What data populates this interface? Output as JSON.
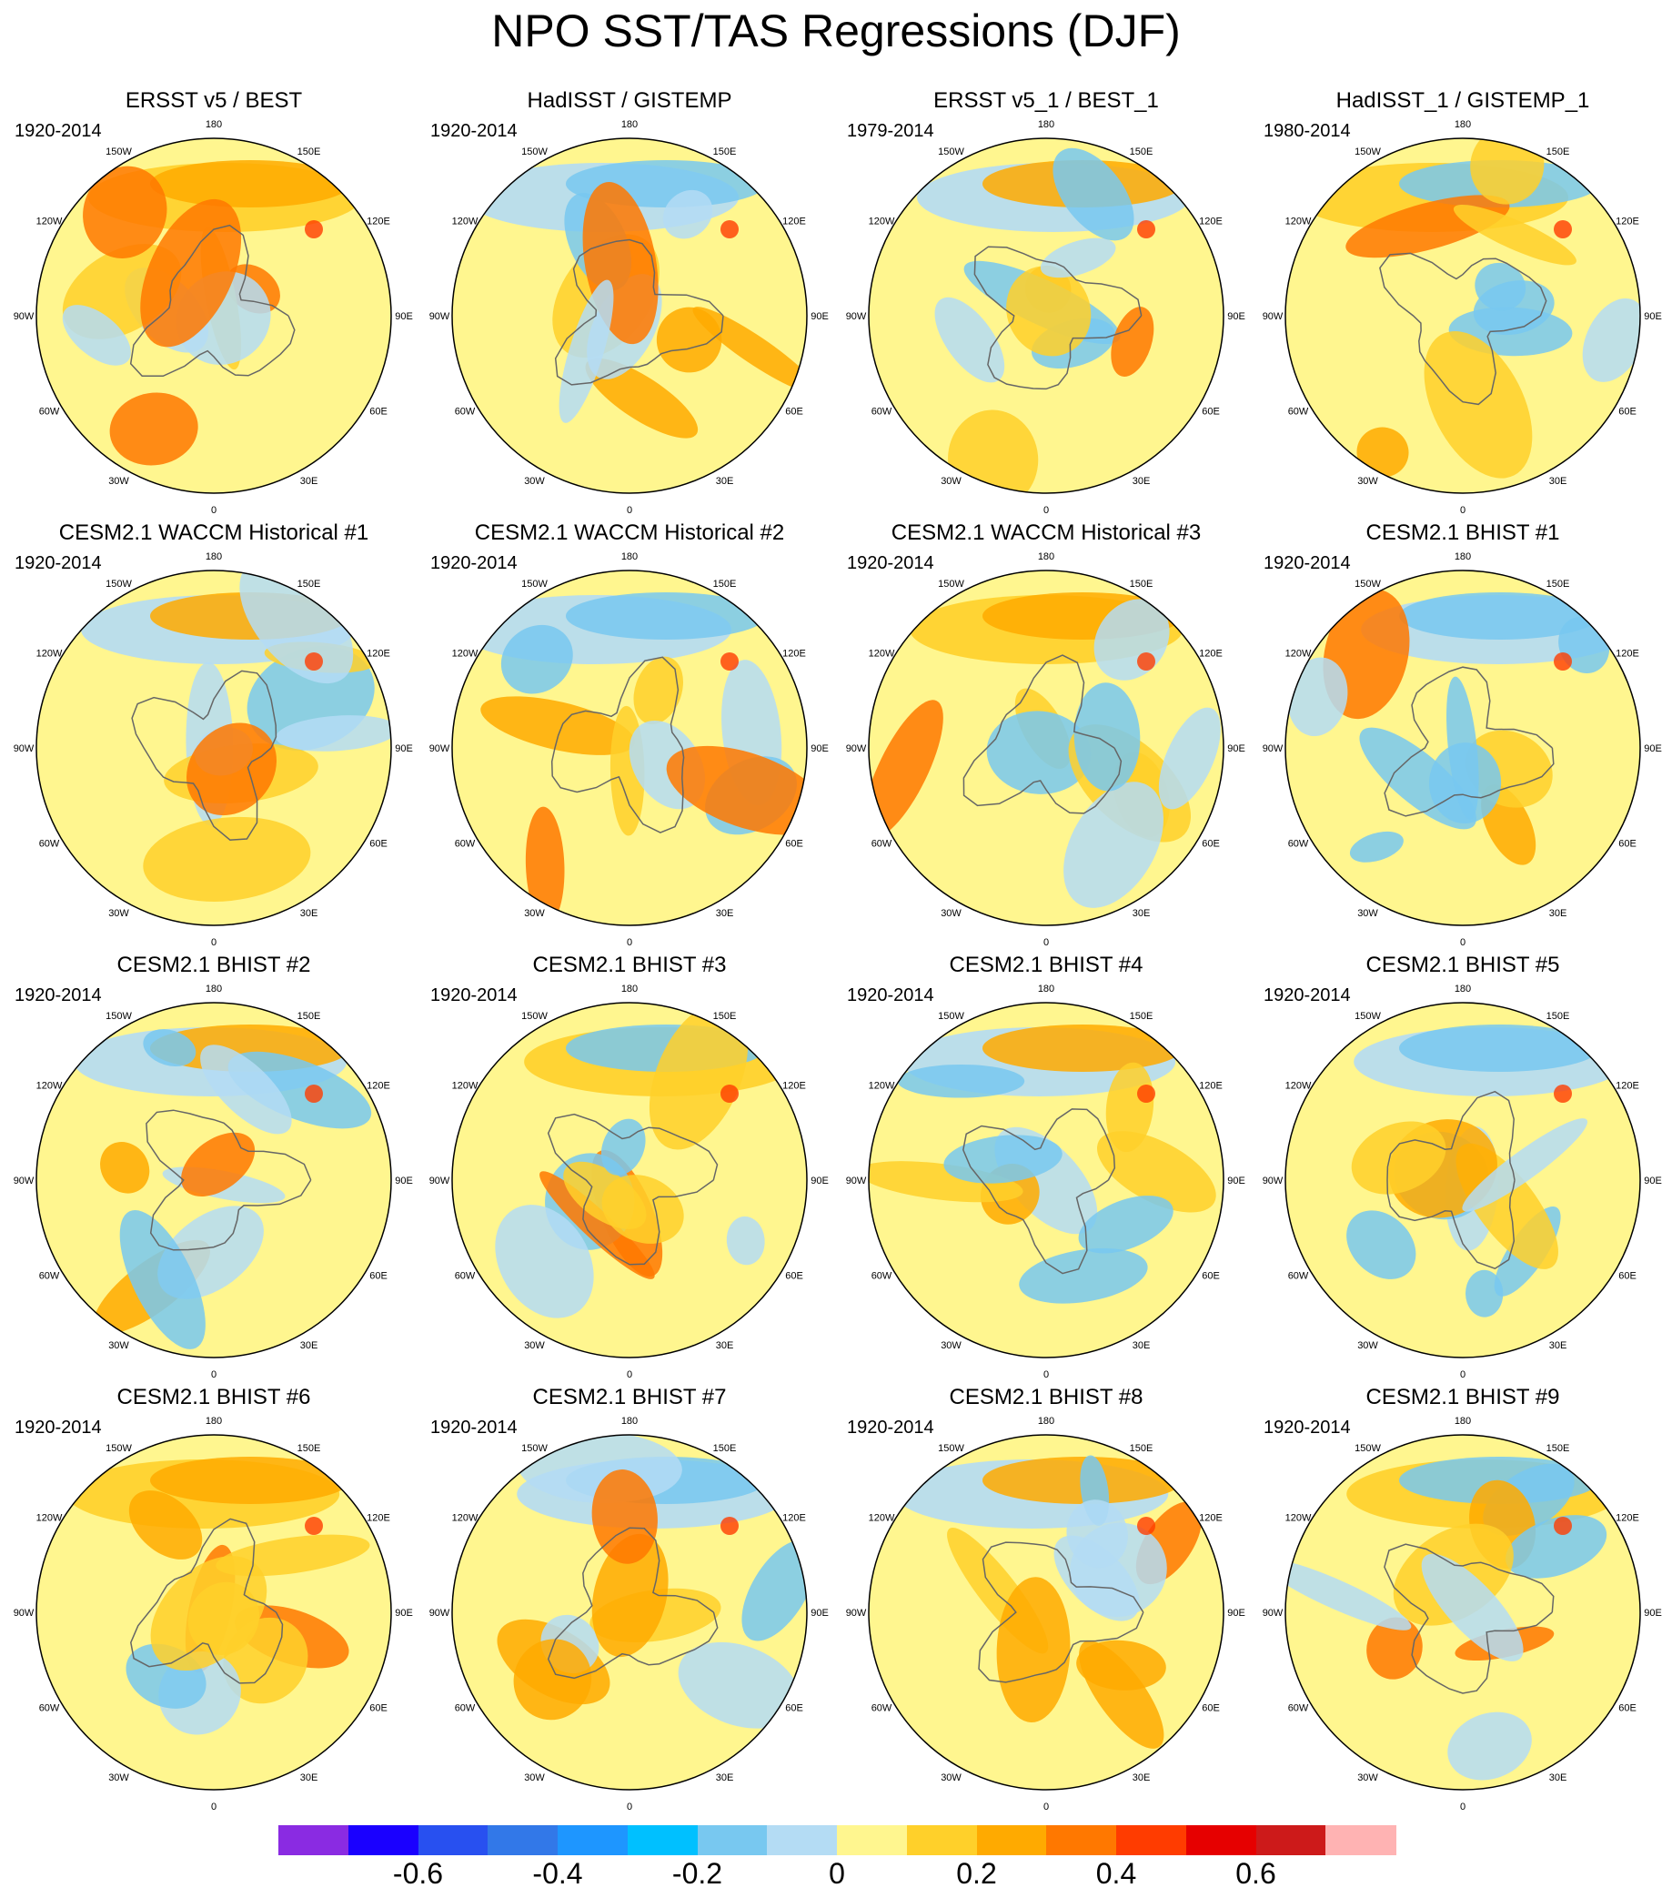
{
  "title": "NPO SST/TAS Regressions (DJF)",
  "lon_labels": [
    "180",
    "150E",
    "120E",
    "90E",
    "60E",
    "30E",
    "0",
    "30W",
    "60W",
    "90W",
    "120W",
    "150W"
  ],
  "panels": [
    {
      "title": "ERSST v5 / BEST",
      "period": "1920-2014"
    },
    {
      "title": "HadISST / GISTEMP",
      "period": "1920-2014"
    },
    {
      "title": "ERSST v5_1 / BEST_1",
      "period": "1979-2014"
    },
    {
      "title": "HadISST_1 / GISTEMP_1",
      "period": "1980-2014"
    },
    {
      "title": "CESM2.1 WACCM Historical #1",
      "period": "1920-2014"
    },
    {
      "title": "CESM2.1 WACCM Historical #2",
      "period": "1920-2014"
    },
    {
      "title": "CESM2.1 WACCM Historical #3",
      "period": "1920-2014"
    },
    {
      "title": "CESM2.1 BHIST #1",
      "period": "1920-2014"
    },
    {
      "title": "CESM2.1 BHIST #2",
      "period": "1920-2014"
    },
    {
      "title": "CESM2.1 BHIST #3",
      "period": "1920-2014"
    },
    {
      "title": "CESM2.1 BHIST #4",
      "period": "1920-2014"
    },
    {
      "title": "CESM2.1 BHIST #5",
      "period": "1920-2014"
    },
    {
      "title": "CESM2.1 BHIST #6",
      "period": "1920-2014"
    },
    {
      "title": "CESM2.1 BHIST #7",
      "period": "1920-2014"
    },
    {
      "title": "CESM2.1 BHIST #8",
      "period": "1920-2014"
    },
    {
      "title": "CESM2.1 BHIST #9",
      "period": "1920-2014"
    }
  ],
  "colorbar": {
    "colors": [
      "#8a2be2",
      "#1a00ff",
      "#2850f0",
      "#3278e8",
      "#1e96ff",
      "#00c0ff",
      "#78c8f0",
      "#b4dcf4",
      "#fff68f",
      "#ffd02a",
      "#ffaa00",
      "#ff7800",
      "#ff3c00",
      "#e60000",
      "#cd1a1a",
      "#ffb3b3"
    ],
    "labels": [
      "-0.6",
      "-0.4",
      "-0.2",
      "0",
      "0.2",
      "0.4",
      "0.6"
    ],
    "label_values": [
      -0.6,
      -0.4,
      -0.2,
      0,
      0.2,
      0.4,
      0.6
    ],
    "min": -0.8,
    "max": 0.8
  }
}
